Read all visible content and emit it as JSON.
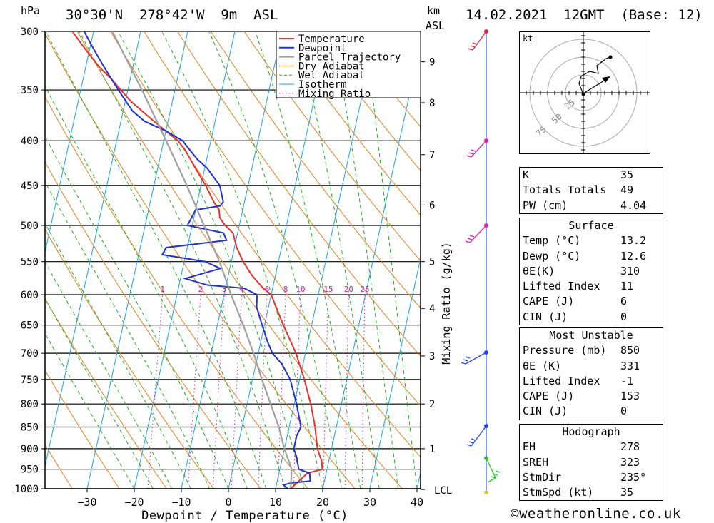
{
  "header": {
    "pressure_unit": "hPa",
    "location": "30°30'N  278°42'W  9m  ASL",
    "km_unit": "km",
    "asl_unit": "ASL",
    "datetime": "14.02.2021  12GMT  (Base: 12)"
  },
  "chart_data": {
    "type": "line",
    "chart": "skew-T log-P",
    "xlabel": "Dewpoint / Temperature (°C)",
    "ylabel_right": "Mixing Ratio (g/kg)",
    "pressure_levels": [
      300,
      350,
      400,
      450,
      500,
      550,
      600,
      650,
      700,
      750,
      800,
      850,
      900,
      950,
      1000
    ],
    "x_ticks": [
      -30,
      -20,
      -10,
      0,
      10,
      20,
      30,
      40
    ],
    "height_ticks_km": [
      {
        "km": "9",
        "p": 325
      },
      {
        "km": "8",
        "p": 362
      },
      {
        "km": "7",
        "p": 415
      },
      {
        "km": "6",
        "p": 474
      },
      {
        "km": "5",
        "p": 550
      },
      {
        "km": "4",
        "p": 622
      },
      {
        "km": "3",
        "p": 705
      },
      {
        "km": "2",
        "p": 800
      },
      {
        "km": "1",
        "p": 900
      }
    ],
    "lcl_label": "LCL",
    "lcl_p": 1002,
    "mixing_ratio_labels": [
      "1",
      "2",
      "3",
      "4",
      "6",
      "8",
      "10",
      "15",
      "20",
      "25"
    ],
    "legend": [
      "Temperature",
      "Dewpoint",
      "Parcel Trajectory",
      "Dry Adiabat",
      "Wet Adiabat",
      "Isotherm",
      "Mixing Ratio"
    ],
    "series": [
      {
        "name": "Temperature",
        "color": "#e8302c",
        "points": [
          [
            13.2,
            1000
          ],
          [
            16,
            960
          ],
          [
            19,
            950
          ],
          [
            18.5,
            930
          ],
          [
            17,
            900
          ],
          [
            15.5,
            850
          ],
          [
            13.5,
            800
          ],
          [
            11,
            750
          ],
          [
            8,
            700
          ],
          [
            4,
            650
          ],
          [
            0,
            600
          ],
          [
            -2,
            590
          ],
          [
            -3.5,
            580
          ],
          [
            -5,
            570
          ],
          [
            -7.5,
            550
          ],
          [
            -9.5,
            530
          ],
          [
            -11,
            510
          ],
          [
            -13,
            500
          ],
          [
            -14.5,
            490
          ],
          [
            -15,
            480
          ],
          [
            -16.5,
            470
          ],
          [
            -19,
            450
          ],
          [
            -22,
            430
          ],
          [
            -25,
            410
          ],
          [
            -27,
            400
          ],
          [
            -30,
            390
          ],
          [
            -33,
            380
          ],
          [
            -36,
            370
          ],
          [
            -39,
            360
          ],
          [
            -41.5,
            350
          ],
          [
            -44,
            340
          ],
          [
            -47,
            330
          ],
          [
            -49.5,
            320
          ],
          [
            -52,
            310
          ],
          [
            -54.5,
            300
          ]
        ]
      },
      {
        "name": "Dewpoint",
        "color": "#2233cc",
        "points": [
          [
            12.6,
            1000
          ],
          [
            11.5,
            990
          ],
          [
            13,
            985
          ],
          [
            17,
            980
          ],
          [
            16.5,
            960
          ],
          [
            14,
            950
          ],
          [
            13,
            920
          ],
          [
            12,
            900
          ],
          [
            12,
            870
          ],
          [
            12.5,
            850
          ],
          [
            10.5,
            800
          ],
          [
            8,
            750
          ],
          [
            5.5,
            720
          ],
          [
            3,
            700
          ],
          [
            1.5,
            680
          ],
          [
            -0.5,
            650
          ],
          [
            -2.5,
            620
          ],
          [
            -3,
            600
          ],
          [
            -6,
            590
          ],
          [
            -14,
            585
          ],
          [
            -19,
            575
          ],
          [
            -12,
            560
          ],
          [
            -15.5,
            550
          ],
          [
            -25,
            540
          ],
          [
            -24.5,
            530
          ],
          [
            -12,
            520
          ],
          [
            -13,
            510
          ],
          [
            -21,
            500
          ],
          [
            -20.5,
            490
          ],
          [
            -20,
            480
          ],
          [
            -15,
            475
          ],
          [
            -14.5,
            470
          ],
          [
            -16,
            450
          ],
          [
            -19.5,
            430
          ],
          [
            -22,
            420
          ],
          [
            -24,
            410
          ],
          [
            -26,
            400
          ],
          [
            -30,
            390
          ],
          [
            -35,
            380
          ],
          [
            -38,
            370
          ],
          [
            -40,
            360
          ],
          [
            -42,
            350
          ],
          [
            -44,
            340
          ],
          [
            -46,
            330
          ],
          [
            -48,
            320
          ],
          [
            -50,
            310
          ],
          [
            -52,
            300
          ]
        ]
      },
      {
        "name": "Parcel Trajectory",
        "color": "#a0a0a0",
        "points": [
          [
            13.2,
            1000
          ],
          [
            12.5,
            950
          ],
          [
            10,
            900
          ],
          [
            7.8,
            850
          ],
          [
            5,
            800
          ],
          [
            2,
            750
          ],
          [
            -1,
            700
          ],
          [
            -4.5,
            650
          ],
          [
            -8.5,
            600
          ],
          [
            -12.5,
            550
          ],
          [
            -17.5,
            500
          ],
          [
            -23,
            450
          ],
          [
            -29.5,
            400
          ],
          [
            -37,
            350
          ],
          [
            -46,
            300
          ]
        ]
      }
    ]
  },
  "hodograph": {
    "unit_label": "kt",
    "ring_labels": [
      "25",
      "50",
      "75"
    ]
  },
  "tables": {
    "indices": [
      {
        "label": "K",
        "value": "35"
      },
      {
        "label": "Totals Totals",
        "value": "49"
      },
      {
        "label": "PW (cm)",
        "value": "4.04"
      }
    ],
    "surface": {
      "title": "Surface",
      "rows": [
        {
          "label": "Temp (°C)",
          "value": "13.2"
        },
        {
          "label": "Dewp (°C)",
          "value": "12.6"
        },
        {
          "label": "θE(K)",
          "value": "310"
        },
        {
          "label": "Lifted Index",
          "value": "11"
        },
        {
          "label": "CAPE (J)",
          "value": "6"
        },
        {
          "label": "CIN (J)",
          "value": "0"
        }
      ]
    },
    "most_unstable": {
      "title": "Most Unstable",
      "rows": [
        {
          "label": "Pressure (mb)",
          "value": "850"
        },
        {
          "label": "θE (K)",
          "value": "331"
        },
        {
          "label": "Lifted Index",
          "value": "-1"
        },
        {
          "label": "CAPE (J)",
          "value": "153"
        },
        {
          "label": "CIN (J)",
          "value": "0"
        }
      ]
    },
    "hodograph_tbl": {
      "title": "Hodograph",
      "rows": [
        {
          "label": "EH",
          "value": "278"
        },
        {
          "label": "SREH",
          "value": "323"
        },
        {
          "label": "StmDir",
          "value": "235°"
        },
        {
          "label": "StmSpd (kt)",
          "value": "35"
        }
      ]
    }
  },
  "footer": {
    "copyright": "©weatheronline.co.uk"
  }
}
